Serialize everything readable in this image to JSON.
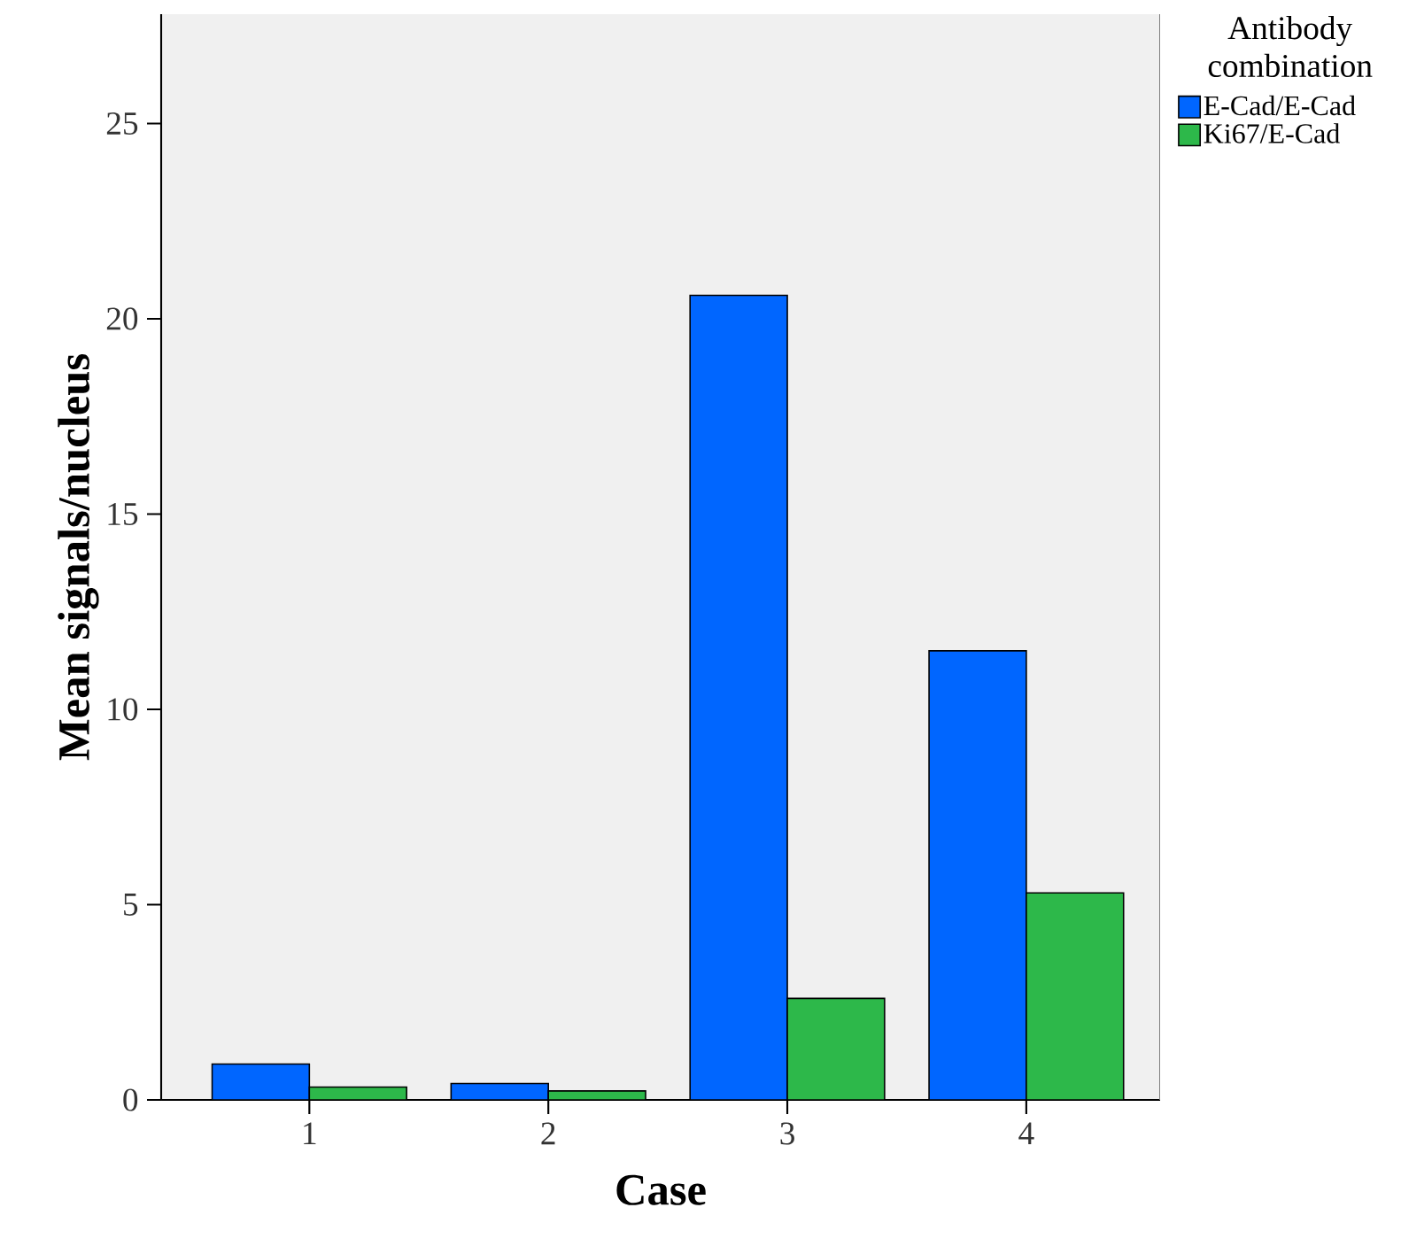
{
  "chart_data": {
    "type": "bar",
    "categories": [
      "1",
      "2",
      "3",
      "4"
    ],
    "xlabel": "Case",
    "ylabel": "Mean signals/nucleus",
    "legend_title": "Antibody combination",
    "series": [
      {
        "name": "E-Cad/E-Cad",
        "color": "#0066ff",
        "values": [
          0.92,
          0.42,
          20.6,
          11.5
        ]
      },
      {
        "name": "Ki67/E-Cad",
        "color": "#2db84a",
        "values": [
          0.33,
          0.23,
          2.6,
          5.3
        ]
      }
    ],
    "ylim": [
      0,
      27.8
    ],
    "yticks": [
      0,
      5,
      10,
      15,
      20,
      25
    ],
    "grid": false,
    "legend": "right"
  }
}
